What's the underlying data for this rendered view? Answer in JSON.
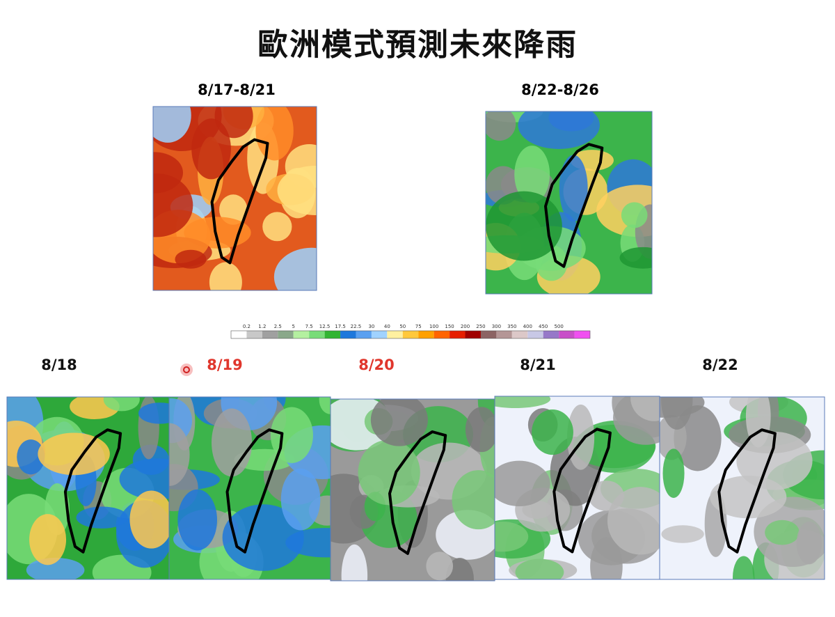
{
  "title": "歐洲模式預測未來降雨",
  "periods": [
    {
      "label": "8/17-8/21"
    },
    {
      "label": "8/22-8/26"
    }
  ],
  "colorbar": {
    "labels": [
      "0.2",
      "1.2",
      "2.5",
      "5",
      "7.5",
      "12.5",
      "17.5",
      "22.5",
      "30",
      "40",
      "50",
      "75",
      "100",
      "150",
      "200",
      "250",
      "300",
      "350",
      "400",
      "450",
      "500"
    ],
    "colors": [
      "#ffffff",
      "#c8c8c8",
      "#a0a0a0",
      "#8aa88a",
      "#b4f0a0",
      "#78dc78",
      "#32b432",
      "#1e78dc",
      "#5aa0f0",
      "#a0d2ff",
      "#fff0a0",
      "#ffc83c",
      "#ffa000",
      "#ff6400",
      "#e61e00",
      "#a00000",
      "#8c6464",
      "#b49696",
      "#dcc8c8",
      "#c8c8e6",
      "#9678c8",
      "#c850c8",
      "#f050f0"
    ]
  },
  "days": [
    {
      "label": "8/18",
      "color": "#111111"
    },
    {
      "label": "8/19",
      "color": "#e0362c"
    },
    {
      "label": "8/20",
      "color": "#e0362c"
    },
    {
      "label": "8/21",
      "color": "#111111"
    },
    {
      "label": "8/22",
      "color": "#111111"
    }
  ]
}
